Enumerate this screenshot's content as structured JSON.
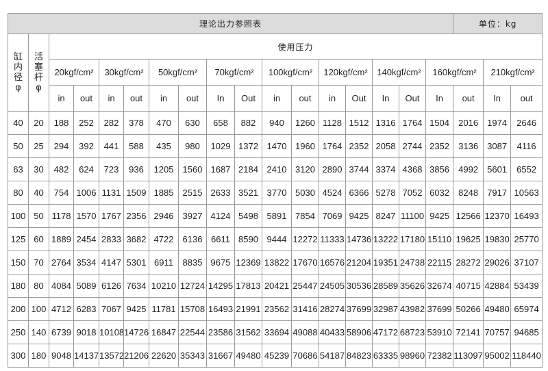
{
  "header": {
    "title": "理论出力参照表",
    "unit": "单位：kg",
    "bore_label": "缸内径φ",
    "rod_label": "活塞杆φ",
    "pressure_label": "使用压力"
  },
  "pressures": [
    {
      "label": "20kgf/cm²",
      "in": "in",
      "out": "out"
    },
    {
      "label": "30kgf/cm²",
      "in": "in",
      "out": "out"
    },
    {
      "label": "50kgf/cm²",
      "in": "in",
      "out": "out"
    },
    {
      "label": "70kgf/cm²",
      "in": "In",
      "out": "Out"
    },
    {
      "label": "100kgf/cm²",
      "in": "in",
      "out": "out"
    },
    {
      "label": "120kgf/cm²",
      "in": "in",
      "out": "Out"
    },
    {
      "label": "140kgf/cm²",
      "in": "In",
      "out": "Out"
    },
    {
      "label": "160kgf/cm²",
      "in": "In",
      "out": "out"
    },
    {
      "label": "210kgf/cm²",
      "in": "In",
      "out": "out"
    }
  ],
  "rows": [
    {
      "bore": "40",
      "rod": "20",
      "values": [
        "188",
        "252",
        "282",
        "378",
        "470",
        "630",
        "658",
        "882",
        "940",
        "1260",
        "1128",
        "1512",
        "1316",
        "1764",
        "1504",
        "2016",
        "1974",
        "2646"
      ]
    },
    {
      "bore": "50",
      "rod": "25",
      "values": [
        "294",
        "392",
        "441",
        "588",
        "435",
        "980",
        "1029",
        "1372",
        "1470",
        "1960",
        "1764",
        "2352",
        "2058",
        "2744",
        "2352",
        "3136",
        "3087",
        "4116"
      ]
    },
    {
      "bore": "63",
      "rod": "30",
      "values": [
        "482",
        "624",
        "723",
        "936",
        "1205",
        "1560",
        "1687",
        "2184",
        "2410",
        "3120",
        "2890",
        "3744",
        "3374",
        "4368",
        "3856",
        "4992",
        "5601",
        "6552"
      ]
    },
    {
      "bore": "80",
      "rod": "40",
      "values": [
        "754",
        "1006",
        "1131",
        "1509",
        "1885",
        "2515",
        "2633",
        "3521",
        "3770",
        "5030",
        "4524",
        "6366",
        "5278",
        "7052",
        "6032",
        "8248",
        "7917",
        "10563"
      ]
    },
    {
      "bore": "100",
      "rod": "50",
      "values": [
        "1178",
        "1570",
        "1767",
        "2356",
        "2946",
        "3927",
        "4124",
        "5498",
        "5891",
        "7854",
        "7069",
        "9425",
        "8247",
        "11100",
        "9425",
        "12566",
        "12370",
        "16493"
      ]
    },
    {
      "bore": "125",
      "rod": "60",
      "values": [
        "1889",
        "2454",
        "2833",
        "3682",
        "4722",
        "6136",
        "6611",
        "8590",
        "9444",
        "12272",
        "11333",
        "14736",
        "13222",
        "17180",
        "15110",
        "19625",
        "19830",
        "25770"
      ]
    },
    {
      "bore": "150",
      "rod": "70",
      "values": [
        "2764",
        "3534",
        "4147",
        "5301",
        "6911",
        "8835",
        "9675",
        "12369",
        "13822",
        "17670",
        "16576",
        "21204",
        "19351",
        "24738",
        "22115",
        "28272",
        "29026",
        "37107"
      ]
    },
    {
      "bore": "180",
      "rod": "80",
      "values": [
        "4084",
        "5089",
        "6126",
        "7634",
        "10210",
        "12724",
        "14295",
        "17813",
        "20421",
        "25447",
        "24505",
        "30536",
        "28589",
        "35626",
        "32674",
        "40715",
        "42884",
        "53439"
      ]
    },
    {
      "bore": "200",
      "rod": "100",
      "values": [
        "4712",
        "6283",
        "7067",
        "9425",
        "11781",
        "15708",
        "16493",
        "21991",
        "23562",
        "31416",
        "28274",
        "37699",
        "32987",
        "43982",
        "37699",
        "50266",
        "49480",
        "65974"
      ]
    },
    {
      "bore": "250",
      "rod": "140",
      "values": [
        "6739",
        "9018",
        "10108",
        "14726",
        "16847",
        "22544",
        "23586",
        "31562",
        "33694",
        "49088",
        "40433",
        "58906",
        "47172",
        "68723",
        "53910",
        "72141",
        "70757",
        "94685"
      ]
    },
    {
      "bore": "300",
      "rod": "180",
      "values": [
        "9048",
        "14137",
        "13572",
        "21206",
        "22620",
        "35343",
        "31667",
        "49480",
        "45239",
        "70686",
        "54187",
        "84823",
        "63335",
        "98960",
        "72382",
        "113097",
        "95002",
        "118440"
      ]
    }
  ],
  "colors": {
    "header_bg": "#dcdcdc",
    "border": "#9a9a9a",
    "text": "#222222"
  }
}
